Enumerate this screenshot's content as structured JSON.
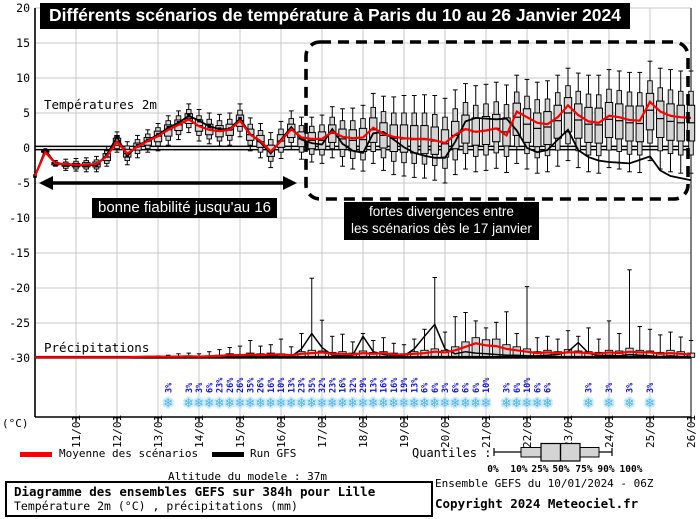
{
  "title": "Différents scénarios de température à Paris du 10 au 26 Janvier 2024",
  "labels": {
    "temp_series": "Températures 2m",
    "precip_series": "Précipitations",
    "unit_y": "(°C)"
  },
  "annotations": {
    "reliability": "bonne fiabilité jusqu'au 16",
    "divergence_line1": "fortes divergences entre",
    "divergence_line2": "les scénarios dès le 17 janvier"
  },
  "legend": {
    "mean_label": "Moyenne des scénarios",
    "run_label": "Run GFS",
    "quantiles_label": "Quantiles :",
    "quantile_ticks": [
      "0%",
      "10%",
      "25%",
      "50%",
      "75%",
      "90%",
      "100%"
    ]
  },
  "footer": {
    "altitude": "Altitude du modele : 37m",
    "box_line1": "Diagramme des ensembles GEFS sur 384h pour Lille",
    "box_line2": "Température 2m (°C) , précipitations (mm)",
    "run_info": "Ensemble GEFS du 10/01/2024 - 06Z",
    "copyright": "Copyright 2024 Meteociel.fr"
  },
  "chart_data": {
    "type": "ensemble-boxplot",
    "title": "Différents scénarios de température à Paris du 10 au 26 Janvier 2024",
    "x_start": "10/01 00h",
    "step_hours": 6,
    "dates": [
      "11/01",
      "12/01",
      "13/01",
      "14/01",
      "15/01",
      "16/01",
      "17/01",
      "18/01",
      "19/01",
      "20/01",
      "21/01",
      "22/01",
      "23/01",
      "24/01",
      "25/01",
      "26/01"
    ],
    "yticks": [
      20,
      15,
      10,
      5,
      0,
      -5,
      -10,
      -15,
      -20,
      -25,
      -30
    ],
    "ylim": [
      -35,
      21
    ],
    "quantile_levels": [
      "0%",
      "10%",
      "25%",
      "50%",
      "75%",
      "90%",
      "100%"
    ],
    "colors": {
      "mean": "#ff0000",
      "gfs": "#000000",
      "box_fill": "#d4d4d4",
      "grid": "#c9c9c9",
      "snow": "#52b4e6",
      "snow_halo": "#c9eafa",
      "snow_label": "#1414cc"
    },
    "temperature": {
      "mean": [
        -4.0,
        -0.6,
        -2.2,
        -2.3,
        -2.4,
        -2.4,
        -2.3,
        -1.2,
        0.9,
        -0.8,
        0.2,
        1.0,
        1.7,
        2.6,
        3.3,
        4.1,
        3.1,
        2.6,
        2.4,
        2.6,
        3.9,
        1.9,
        1.0,
        -0.5,
        1.0,
        2.7,
        1.5,
        1.3,
        1.3,
        2.3,
        1.6,
        1.4,
        1.5,
        2.9,
        2.0,
        1.6,
        1.4,
        1.3,
        1.3,
        1.1,
        0.7,
        1.9,
        2.7,
        2.3,
        2.5,
        2.8,
        1.8,
        5.2,
        4.4,
        3.6,
        3.4,
        4.4,
        6.1,
        4.7,
        3.8,
        3.6,
        4.6,
        4.4,
        4.0,
        3.9,
        6.6,
        5.2,
        4.6,
        4.4,
        4.3
      ],
      "gfs": [
        -4.0,
        -0.3,
        -2.2,
        -2.4,
        -2.5,
        -2.5,
        -2.4,
        -1.0,
        1.6,
        -1.1,
        0.3,
        1.1,
        1.9,
        2.9,
        3.6,
        4.6,
        3.9,
        3.1,
        2.7,
        2.7,
        4.2,
        2.0,
        0.8,
        -0.8,
        1.2,
        3.0,
        1.2,
        0.7,
        0.5,
        2.7,
        0.6,
        -0.4,
        -0.7,
        2.1,
        2.3,
        1.2,
        0.1,
        -0.7,
        -1.1,
        -1.4,
        -1.4,
        0.9,
        3.8,
        4.3,
        4.2,
        4.1,
        4.2,
        2.5,
        0.0,
        -0.6,
        -0.3,
        1.2,
        2.6,
        -0.3,
        -1.3,
        -1.8,
        -2.0,
        -2.1,
        -2.2,
        -1.7,
        -1.2,
        -3.2,
        -4.0,
        -4.3,
        -4.6
      ],
      "quantiles": [
        [
          -4.0,
          -4.0,
          -4.0,
          -4.0,
          -4.0,
          -4.0,
          -4.0
        ],
        [
          -0.8,
          -0.7,
          -0.6,
          -0.5,
          -0.4,
          -0.3,
          -0.2
        ],
        [
          -2.6,
          -2.5,
          -2.4,
          -2.2,
          -2.1,
          -2.0,
          -1.8
        ],
        [
          -3.2,
          -2.9,
          -2.6,
          -2.4,
          -2.2,
          -2.0,
          -1.6
        ],
        [
          -3.3,
          -3.0,
          -2.7,
          -2.4,
          -2.2,
          -1.9,
          -1.5
        ],
        [
          -3.4,
          -3.0,
          -2.7,
          -2.4,
          -2.1,
          -1.8,
          -1.4
        ],
        [
          -3.4,
          -3.0,
          -2.7,
          -2.3,
          -2.0,
          -1.7,
          -1.2
        ],
        [
          -2.6,
          -2.2,
          -1.8,
          -1.3,
          -0.8,
          -0.4,
          0.2
        ],
        [
          -0.6,
          -0.1,
          0.4,
          0.9,
          1.4,
          1.8,
          2.3
        ],
        [
          -2.4,
          -1.8,
          -1.3,
          -0.8,
          -0.2,
          0.3,
          0.9
        ],
        [
          -1.4,
          -0.8,
          -0.3,
          0.2,
          0.7,
          1.2,
          1.8
        ],
        [
          -0.6,
          -0.1,
          0.4,
          1.0,
          1.5,
          2.0,
          2.6
        ],
        [
          -0.4,
          0.3,
          0.9,
          1.7,
          2.4,
          2.9,
          3.5
        ],
        [
          0.4,
          1.1,
          1.7,
          2.6,
          3.3,
          3.9,
          4.6
        ],
        [
          1.2,
          1.9,
          2.5,
          3.3,
          4.0,
          4.6,
          5.3
        ],
        [
          2.2,
          2.9,
          3.5,
          4.2,
          4.9,
          5.5,
          6.3
        ],
        [
          1.0,
          1.8,
          2.4,
          3.2,
          4.0,
          4.6,
          5.5
        ],
        [
          0.6,
          1.3,
          1.9,
          2.7,
          3.4,
          4.1,
          5.0
        ],
        [
          0.3,
          1.0,
          1.6,
          2.4,
          3.2,
          3.9,
          4.8
        ],
        [
          0.4,
          1.1,
          1.8,
          2.6,
          3.4,
          4.1,
          5.0
        ],
        [
          1.6,
          2.4,
          3.1,
          3.9,
          4.7,
          5.4,
          6.3
        ],
        [
          -0.4,
          0.4,
          1.1,
          1.9,
          2.7,
          3.4,
          4.3
        ],
        [
          -1.4,
          -0.6,
          0.1,
          0.9,
          1.8,
          2.5,
          3.5
        ],
        [
          -2.8,
          -1.9,
          -1.2,
          -0.4,
          0.4,
          1.2,
          2.2
        ],
        [
          -1.5,
          -0.6,
          0.1,
          1.0,
          1.9,
          2.7,
          3.8
        ],
        [
          -0.2,
          0.8,
          1.5,
          2.5,
          3.4,
          4.2,
          5.3
        ],
        [
          -1.6,
          -0.6,
          0.2,
          1.3,
          2.3,
          3.2,
          4.4
        ],
        [
          -2.0,
          -0.9,
          -0.1,
          1.1,
          2.2,
          3.1,
          4.4
        ],
        [
          -2.2,
          -1.0,
          -0.2,
          1.1,
          2.3,
          3.3,
          4.7
        ],
        [
          -1.4,
          -0.1,
          0.8,
          2.1,
          3.3,
          4.4,
          5.9
        ],
        [
          -2.6,
          -1.2,
          -0.2,
          1.3,
          2.7,
          3.9,
          5.6
        ],
        [
          -3.0,
          -1.5,
          -0.4,
          1.1,
          2.6,
          3.9,
          5.7
        ],
        [
          -3.3,
          -1.7,
          -0.5,
          1.2,
          2.8,
          4.2,
          6.1
        ],
        [
          -2.2,
          -0.5,
          0.8,
          2.6,
          4.3,
          5.8,
          7.8
        ],
        [
          -3.2,
          -1.4,
          0.0,
          1.8,
          3.6,
          5.2,
          7.4
        ],
        [
          -3.8,
          -1.9,
          -0.5,
          1.4,
          3.3,
          5.0,
          7.3
        ],
        [
          -4.0,
          -2.1,
          -0.6,
          1.3,
          3.3,
          5.0,
          7.5
        ],
        [
          -4.2,
          -2.2,
          -0.7,
          1.2,
          3.2,
          5.0,
          7.5
        ],
        [
          -4.3,
          -2.3,
          -0.8,
          1.2,
          3.2,
          5.0,
          7.6
        ],
        [
          -4.6,
          -2.5,
          -0.9,
          1.0,
          3.0,
          4.8,
          7.5
        ],
        [
          -5.0,
          -2.9,
          -1.3,
          0.6,
          2.6,
          4.4,
          7.1
        ],
        [
          -3.8,
          -1.7,
          -0.1,
          1.8,
          3.8,
          5.6,
          8.3
        ],
        [
          -3.0,
          -0.8,
          0.7,
          2.7,
          4.7,
          6.5,
          9.2
        ],
        [
          -3.4,
          -1.2,
          0.4,
          2.3,
          4.3,
          6.1,
          8.9
        ],
        [
          -3.2,
          -1.0,
          0.5,
          2.5,
          4.5,
          6.3,
          9.1
        ],
        [
          -2.9,
          -0.7,
          0.9,
          2.8,
          4.8,
          6.6,
          9.4
        ],
        [
          -3.5,
          -1.2,
          0.3,
          2.3,
          4.3,
          6.2,
          9.0
        ],
        [
          -2.2,
          0.2,
          1.8,
          4.4,
          6.4,
          8.0,
          10.4
        ],
        [
          -3.0,
          -0.8,
          0.8,
          3.4,
          5.6,
          7.4,
          9.8
        ],
        [
          -3.6,
          -1.4,
          0.2,
          2.8,
          5.0,
          6.9,
          9.4
        ],
        [
          -3.4,
          -1.1,
          0.5,
          3.0,
          5.2,
          7.0,
          9.6
        ],
        [
          -2.6,
          -0.3,
          1.4,
          3.9,
          6.1,
          7.9,
          10.4
        ],
        [
          -1.8,
          0.6,
          2.3,
          5.0,
          7.2,
          8.9,
          11.4
        ],
        [
          -2.8,
          -0.4,
          1.4,
          4.0,
          6.3,
          8.1,
          10.7
        ],
        [
          -3.4,
          -1.0,
          0.8,
          3.4,
          5.8,
          7.7,
          10.4
        ],
        [
          -3.6,
          -1.1,
          0.7,
          3.3,
          5.7,
          7.6,
          10.4
        ],
        [
          -2.8,
          -0.3,
          1.5,
          4.1,
          6.5,
          8.4,
          11.2
        ],
        [
          -3.0,
          -0.5,
          1.3,
          3.9,
          6.3,
          8.2,
          11.0
        ],
        [
          -3.4,
          -0.9,
          1.0,
          3.6,
          6.0,
          8.0,
          10.8
        ],
        [
          -3.5,
          -1.0,
          0.9,
          3.5,
          6.0,
          7.9,
          10.8
        ],
        [
          -1.8,
          0.7,
          2.6,
          5.4,
          7.8,
          9.6,
          12.4
        ],
        [
          -3.0,
          -0.4,
          1.5,
          4.2,
          6.7,
          8.6,
          11.4
        ],
        [
          -3.4,
          -0.8,
          1.1,
          3.8,
          6.3,
          8.3,
          11.2
        ],
        [
          -3.6,
          -1.0,
          1.0,
          3.6,
          6.1,
          8.1,
          11.0
        ],
        [
          -3.6,
          -1.0,
          1.0,
          3.6,
          6.1,
          8.1,
          11.0
        ]
      ]
    },
    "precipitation": {
      "baseline_axis_value": -30,
      "unit": "mm",
      "p75": [
        0,
        0,
        0,
        0,
        0,
        0,
        0,
        0,
        0,
        0,
        0,
        0.05,
        0.05,
        0.1,
        0.15,
        0.2,
        0.15,
        0.2,
        0.3,
        0.5,
        0.4,
        0.6,
        0.5,
        0.6,
        0.5,
        0.4,
        0.8,
        1.0,
        0.9,
        0.7,
        0.8,
        0.6,
        0.9,
        0.7,
        0.8,
        0.6,
        0.5,
        0.8,
        1.0,
        1.2,
        1.0,
        1.5,
        2.2,
        2.8,
        2.5,
        2.6,
        1.8,
        1.5,
        1.2,
        0.8,
        1.0,
        0.8,
        1.1,
        0.9,
        0.8,
        0.7,
        1.0,
        0.9,
        1.3,
        1.0,
        0.9,
        0.7,
        1.0,
        0.8,
        0.6
      ],
      "max": [
        0,
        0,
        0,
        0,
        0,
        0,
        0,
        0,
        0,
        0,
        0,
        0.1,
        0.2,
        0.3,
        0.5,
        0.6,
        0.5,
        0.8,
        1.1,
        1.4,
        1.6,
        2.4,
        1.6,
        1.8,
        2.6,
        1.5,
        3.4,
        11.3,
        5.3,
        3.0,
        3.3,
        2.2,
        3.4,
        2.4,
        2.8,
        2.0,
        1.8,
        2.6,
        4.0,
        11.4,
        3.6,
        5.8,
        6.4,
        5.2,
        4.2,
        5.0,
        6.5,
        3.4,
        10.1,
        2.8,
        3.0,
        2.6,
        3.8,
        3.0,
        4.2,
        2.6,
        5.2,
        3.4,
        12.5,
        4.4,
        4.0,
        3.2,
        3.6,
        2.9,
        2.4
      ],
      "gfs": [
        0,
        0,
        0,
        0,
        0,
        0,
        0,
        0,
        0,
        0,
        0,
        0,
        0,
        0,
        0,
        0,
        0,
        0,
        0.1,
        0.4,
        0.3,
        0.2,
        0.1,
        0.2,
        0.1,
        0.1,
        1.2,
        3.4,
        1.4,
        0.3,
        0.2,
        0.3,
        3.0,
        0.8,
        0.4,
        0.3,
        0.2,
        1.2,
        3.0,
        4.7,
        1.2,
        0.5,
        0.8,
        0.6,
        0.5,
        0.4,
        0.3,
        0.3,
        0.2,
        0.2,
        0.3,
        0.4,
        0.8,
        2.1,
        0.6,
        0.2,
        0.3,
        0.2,
        0.4,
        0.3,
        0.2,
        0.1,
        0.2,
        0.1,
        0.1
      ],
      "mean": [
        0,
        0,
        0,
        0,
        0,
        0,
        0,
        0,
        0,
        0,
        0.05,
        0.1,
        0.1,
        0.1,
        0.1,
        0.15,
        0.1,
        0.15,
        0.2,
        0.3,
        0.3,
        0.4,
        0.3,
        0.4,
        0.4,
        0.3,
        0.5,
        0.6,
        0.7,
        0.5,
        0.5,
        0.4,
        0.6,
        0.5,
        0.6,
        0.4,
        0.4,
        0.5,
        0.6,
        0.8,
        0.7,
        1.0,
        1.5,
        2.0,
        1.7,
        1.6,
        1.2,
        1.0,
        0.8,
        0.6,
        0.7,
        0.6,
        0.7,
        0.7,
        0.6,
        0.5,
        0.7,
        0.6,
        0.8,
        0.7,
        0.7,
        0.5,
        0.6,
        0.5,
        0.4
      ],
      "snow_probability": [
        {
          "t": 13,
          "p": "3%"
        },
        {
          "t": 15,
          "p": "3%"
        },
        {
          "t": 16,
          "p": "3%"
        },
        {
          "t": 17,
          "p": "6%"
        },
        {
          "t": 18,
          "p": "23%"
        },
        {
          "t": 19,
          "p": "26%"
        },
        {
          "t": 20,
          "p": "26%"
        },
        {
          "t": 21,
          "p": "35%"
        },
        {
          "t": 22,
          "p": "26%"
        },
        {
          "t": 23,
          "p": "16%"
        },
        {
          "t": 24,
          "p": "10%"
        },
        {
          "t": 25,
          "p": "13%"
        },
        {
          "t": 26,
          "p": "23%"
        },
        {
          "t": 27,
          "p": "35%"
        },
        {
          "t": 28,
          "p": "32%"
        },
        {
          "t": 29,
          "p": "23%"
        },
        {
          "t": 30,
          "p": "16%"
        },
        {
          "t": 31,
          "p": "32%"
        },
        {
          "t": 32,
          "p": "29%"
        },
        {
          "t": 33,
          "p": "13%"
        },
        {
          "t": 34,
          "p": "16%"
        },
        {
          "t": 35,
          "p": "16%"
        },
        {
          "t": 36,
          "p": "19%"
        },
        {
          "t": 37,
          "p": "13%"
        },
        {
          "t": 38,
          "p": "6%"
        },
        {
          "t": 39,
          "p": "6%"
        },
        {
          "t": 40,
          "p": "3%"
        },
        {
          "t": 41,
          "p": "6%"
        },
        {
          "t": 42,
          "p": "6%"
        },
        {
          "t": 43,
          "p": "6%"
        },
        {
          "t": 44,
          "p": "10%"
        },
        {
          "t": 46,
          "p": "3%"
        },
        {
          "t": 47,
          "p": "6%"
        },
        {
          "t": 48,
          "p": "10%"
        },
        {
          "t": 49,
          "p": "6%"
        },
        {
          "t": 50,
          "p": "6%"
        },
        {
          "t": 54,
          "p": "3%"
        },
        {
          "t": 56,
          "p": "3%"
        },
        {
          "t": 58,
          "p": "3%"
        },
        {
          "t": 60,
          "p": "3%"
        }
      ]
    }
  }
}
